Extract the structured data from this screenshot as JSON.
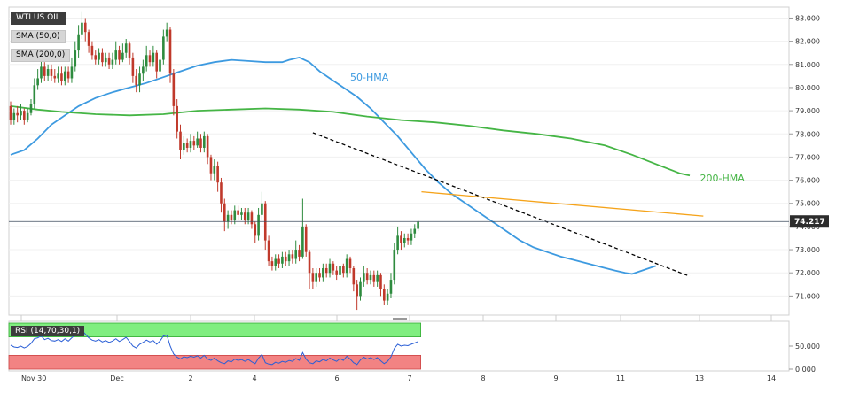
{
  "chart_data": [
    {
      "type": "candlestick",
      "title": "WTI US OIL",
      "indicators": [
        "SMA (50,0)",
        "SMA (200,0)"
      ],
      "ylim": [
        70.25,
        83.4
      ],
      "y_ticks": [
        "71.000",
        "72.000",
        "73.000",
        "74.000",
        "75.000",
        "76.000",
        "77.000",
        "78.000",
        "79.000",
        "80.000",
        "81.000",
        "82.000",
        "83.000"
      ],
      "x_ticks": [
        "Nov 30",
        "Dec",
        "2",
        "4",
        "6",
        "7",
        "8",
        "9",
        "11",
        "13",
        "14"
      ],
      "current_price": "74.217",
      "candles": [
        [
          79.2,
          78.6,
          79.4,
          78.4
        ],
        [
          78.6,
          78.9,
          79.1,
          78.4
        ],
        [
          78.9,
          78.8,
          79.2,
          78.5
        ],
        [
          78.8,
          79.0,
          79.3,
          78.6
        ],
        [
          79.0,
          78.6,
          79.1,
          78.4
        ],
        [
          78.6,
          78.9,
          79.1,
          78.5
        ],
        [
          78.9,
          79.3,
          79.5,
          78.8
        ],
        [
          79.3,
          80.1,
          80.4,
          79.1
        ],
        [
          80.1,
          80.4,
          80.8,
          79.9
        ],
        [
          80.4,
          80.9,
          81.2,
          80.2
        ],
        [
          80.9,
          80.5,
          81.1,
          80.3
        ],
        [
          80.5,
          80.8,
          81.0,
          80.3
        ],
        [
          80.8,
          80.5,
          81.0,
          80.3
        ],
        [
          80.5,
          80.4,
          80.8,
          80.2
        ],
        [
          80.4,
          80.6,
          80.9,
          80.2
        ],
        [
          80.6,
          80.3,
          80.9,
          80.1
        ],
        [
          80.3,
          80.7,
          80.9,
          80.1
        ],
        [
          80.7,
          80.4,
          80.9,
          80.2
        ],
        [
          80.4,
          80.9,
          81.3,
          80.2
        ],
        [
          80.9,
          81.6,
          82.0,
          80.7
        ],
        [
          81.6,
          82.3,
          82.7,
          81.3
        ],
        [
          82.3,
          82.8,
          83.3,
          82.1
        ],
        [
          82.8,
          82.4,
          83.0,
          82.0
        ],
        [
          82.4,
          81.8,
          82.5,
          81.5
        ],
        [
          81.8,
          81.4,
          82.0,
          81.2
        ],
        [
          81.4,
          81.2,
          81.6,
          81.0
        ],
        [
          81.2,
          81.5,
          81.7,
          81.0
        ],
        [
          81.5,
          81.1,
          81.7,
          80.9
        ],
        [
          81.1,
          81.3,
          81.5,
          80.9
        ],
        [
          81.3,
          81.0,
          81.5,
          80.8
        ],
        [
          81.0,
          81.2,
          81.5,
          80.8
        ],
        [
          81.2,
          81.6,
          82.0,
          81.0
        ],
        [
          81.6,
          81.2,
          81.8,
          81.0
        ],
        [
          81.2,
          81.5,
          81.9,
          81.1
        ],
        [
          81.5,
          81.9,
          82.1,
          81.3
        ],
        [
          81.9,
          81.3,
          82.0,
          81.0
        ],
        [
          81.3,
          80.5,
          81.5,
          80.2
        ],
        [
          80.5,
          80.1,
          80.8,
          79.8
        ],
        [
          80.1,
          80.6,
          80.9,
          79.8
        ],
        [
          80.6,
          80.9,
          81.2,
          80.3
        ],
        [
          80.9,
          81.4,
          81.8,
          80.7
        ],
        [
          81.4,
          81.1,
          81.6,
          80.9
        ],
        [
          81.1,
          81.5,
          81.8,
          80.9
        ],
        [
          81.5,
          80.7,
          81.6,
          80.4
        ],
        [
          80.7,
          81.2,
          81.4,
          80.5
        ],
        [
          81.2,
          82.2,
          82.5,
          81.0
        ],
        [
          82.2,
          82.5,
          82.8,
          82.0
        ],
        [
          82.5,
          80.6,
          82.6,
          80.2
        ],
        [
          80.6,
          79.2,
          80.8,
          78.8
        ],
        [
          79.2,
          78.1,
          79.5,
          77.8
        ],
        [
          78.1,
          77.3,
          78.4,
          76.9
        ],
        [
          77.3,
          77.6,
          77.9,
          77.1
        ],
        [
          77.6,
          77.4,
          77.8,
          77.2
        ],
        [
          77.4,
          77.7,
          78.0,
          77.2
        ],
        [
          77.7,
          77.5,
          77.9,
          77.3
        ],
        [
          77.5,
          77.8,
          78.1,
          77.4
        ],
        [
          77.8,
          77.4,
          78.0,
          77.2
        ],
        [
          77.4,
          77.9,
          78.1,
          77.2
        ],
        [
          77.9,
          77.0,
          78.0,
          76.7
        ],
        [
          77.0,
          76.3,
          77.1,
          76.0
        ],
        [
          76.3,
          76.6,
          76.9,
          76.0
        ],
        [
          76.6,
          75.9,
          76.8,
          75.5
        ],
        [
          75.9,
          75.0,
          76.1,
          74.6
        ],
        [
          75.0,
          74.2,
          75.2,
          73.8
        ],
        [
          74.2,
          74.5,
          74.7,
          73.9
        ],
        [
          74.5,
          74.3,
          74.7,
          74.1
        ],
        [
          74.3,
          74.7,
          74.9,
          74.1
        ],
        [
          74.7,
          74.5,
          74.9,
          74.3
        ],
        [
          74.5,
          74.6,
          74.8,
          74.3
        ],
        [
          74.6,
          74.3,
          74.8,
          74.1
        ],
        [
          74.3,
          74.6,
          74.8,
          74.1
        ],
        [
          74.6,
          74.1,
          74.7,
          73.9
        ],
        [
          74.1,
          73.6,
          74.2,
          73.3
        ],
        [
          73.6,
          74.5,
          74.8,
          73.4
        ],
        [
          74.5,
          75.0,
          75.5,
          74.3
        ],
        [
          75.0,
          73.4,
          75.1,
          73.0
        ],
        [
          73.4,
          72.5,
          73.6,
          72.3
        ],
        [
          72.5,
          72.3,
          72.7,
          72.1
        ],
        [
          72.3,
          72.6,
          72.8,
          72.1
        ],
        [
          72.6,
          72.4,
          72.8,
          72.2
        ],
        [
          72.4,
          72.7,
          72.9,
          72.2
        ],
        [
          72.7,
          72.5,
          72.9,
          72.3
        ],
        [
          72.5,
          72.8,
          73.0,
          72.3
        ],
        [
          72.8,
          72.6,
          73.0,
          72.4
        ],
        [
          72.6,
          73.0,
          73.4,
          72.4
        ],
        [
          73.0,
          72.7,
          73.2,
          72.5
        ],
        [
          72.7,
          74.0,
          75.2,
          72.6
        ],
        [
          74.0,
          72.9,
          74.1,
          72.7
        ],
        [
          72.9,
          72.0,
          73.0,
          71.3
        ],
        [
          72.0,
          71.6,
          72.2,
          71.3
        ],
        [
          71.6,
          72.0,
          72.2,
          71.4
        ],
        [
          72.0,
          71.8,
          72.2,
          71.6
        ],
        [
          71.8,
          72.2,
          72.4,
          71.6
        ],
        [
          72.2,
          72.0,
          72.4,
          71.8
        ],
        [
          72.0,
          72.4,
          72.6,
          71.8
        ],
        [
          72.4,
          72.1,
          72.5,
          71.9
        ],
        [
          72.1,
          71.9,
          72.3,
          71.7
        ],
        [
          71.9,
          72.3,
          72.5,
          71.7
        ],
        [
          72.3,
          72.0,
          72.4,
          71.8
        ],
        [
          72.0,
          72.6,
          72.8,
          71.8
        ],
        [
          72.6,
          72.2,
          72.7,
          72.0
        ],
        [
          72.2,
          71.5,
          72.3,
          71.2
        ],
        [
          71.5,
          71.0,
          71.7,
          70.4
        ],
        [
          71.0,
          71.6,
          71.8,
          70.8
        ],
        [
          71.6,
          72.0,
          72.3,
          71.4
        ],
        [
          72.0,
          71.7,
          72.2,
          71.5
        ],
        [
          71.7,
          71.9,
          72.1,
          71.5
        ],
        [
          71.9,
          71.6,
          72.1,
          71.4
        ],
        [
          71.6,
          71.9,
          72.1,
          71.4
        ],
        [
          71.9,
          71.3,
          72.0,
          71.0
        ],
        [
          71.3,
          70.8,
          71.5,
          70.6
        ],
        [
          70.8,
          71.1,
          71.3,
          70.6
        ],
        [
          71.1,
          71.7,
          72.0,
          70.9
        ],
        [
          71.7,
          73.0,
          73.3,
          71.5
        ],
        [
          73.0,
          73.6,
          74.0,
          72.8
        ],
        [
          73.6,
          73.3,
          73.8,
          73.0
        ],
        [
          73.3,
          73.5,
          73.7,
          73.1
        ],
        [
          73.5,
          73.4,
          73.7,
          73.2
        ],
        [
          73.4,
          73.7,
          73.9,
          73.2
        ],
        [
          73.7,
          73.9,
          74.1,
          73.5
        ],
        [
          73.9,
          74.2,
          74.3,
          73.8
        ]
      ],
      "series": [
        {
          "name": "50-HMA",
          "color": "#3d9ae0",
          "values": [
            [
              0,
              77.1
            ],
            [
              4,
              77.3
            ],
            [
              8,
              77.8
            ],
            [
              12,
              78.4
            ],
            [
              16,
              78.8
            ],
            [
              20,
              79.2
            ],
            [
              25,
              79.55
            ],
            [
              30,
              79.8
            ],
            [
              35,
              80.0
            ],
            [
              40,
              80.2
            ],
            [
              45,
              80.45
            ],
            [
              50,
              80.7
            ],
            [
              55,
              80.95
            ],
            [
              60,
              81.1
            ],
            [
              65,
              81.2
            ],
            [
              70,
              81.15
            ],
            [
              75,
              81.1
            ],
            [
              80,
              81.1
            ],
            [
              82,
              81.2
            ],
            [
              85,
              81.3
            ],
            [
              88,
              81.1
            ],
            [
              91,
              80.7
            ],
            [
              94,
              80.4
            ],
            [
              98,
              80.0
            ],
            [
              102,
              79.6
            ],
            [
              106,
              79.1
            ],
            [
              110,
              78.5
            ],
            [
              114,
              77.9
            ],
            [
              118,
              77.2
            ],
            [
              122,
              76.5
            ],
            [
              126,
              75.9
            ],
            [
              130,
              75.4
            ],
            [
              134,
              75.0
            ],
            [
              138,
              74.6
            ],
            [
              142,
              74.2
            ],
            [
              146,
              73.8
            ],
            [
              150,
              73.4
            ],
            [
              154,
              73.1
            ],
            [
              158,
              72.9
            ],
            [
              162,
              72.7
            ],
            [
              166,
              72.55
            ],
            [
              170,
              72.4
            ],
            [
              174,
              72.25
            ],
            [
              178,
              72.1
            ],
            [
              181,
              72.0
            ],
            [
              183,
              71.95
            ],
            [
              185,
              72.05
            ],
            [
              188,
              72.2
            ],
            [
              190,
              72.3
            ]
          ]
        },
        {
          "name": "200-HMA",
          "color": "#45b545",
          "values": [
            [
              0,
              79.2
            ],
            [
              8,
              79.05
            ],
            [
              15,
              78.95
            ],
            [
              25,
              78.85
            ],
            [
              35,
              78.8
            ],
            [
              45,
              78.85
            ],
            [
              55,
              79.0
            ],
            [
              65,
              79.05
            ],
            [
              75,
              79.1
            ],
            [
              85,
              79.05
            ],
            [
              95,
              78.95
            ],
            [
              105,
              78.75
            ],
            [
              115,
              78.6
            ],
            [
              125,
              78.5
            ],
            [
              135,
              78.35
            ],
            [
              145,
              78.15
            ],
            [
              155,
              78.0
            ],
            [
              165,
              77.8
            ],
            [
              175,
              77.5
            ],
            [
              183,
              77.1
            ],
            [
              190,
              76.7
            ],
            [
              197,
              76.3
            ],
            [
              200,
              76.2
            ]
          ]
        }
      ],
      "annotations": [
        {
          "text": "50-HMA",
          "color": "#3d9ae0"
        },
        {
          "text": "200-HMA",
          "color": "#45b545"
        }
      ],
      "trendlines": [
        {
          "style": "dashed",
          "color": "#000000",
          "from": [
            89,
            78.05
          ],
          "to": [
            200,
            71.85
          ]
        },
        {
          "style": "solid",
          "color": "#f5a31a",
          "from": [
            121,
            75.5
          ],
          "to": [
            204,
            74.45
          ]
        }
      ]
    },
    {
      "type": "line",
      "title": "RSI (14,70,30,1)",
      "ylim": [
        0,
        100
      ],
      "y_ticks": [
        "0.000",
        "50.000"
      ],
      "overbought": 70,
      "oversold": 30,
      "series": [
        {
          "name": "RSI",
          "values": [
            52,
            48,
            47,
            50,
            46,
            49,
            56,
            66,
            68,
            72,
            64,
            67,
            62,
            61,
            64,
            60,
            66,
            61,
            68,
            74,
            80,
            84,
            76,
            68,
            63,
            61,
            64,
            59,
            62,
            58,
            61,
            66,
            60,
            64,
            69,
            60,
            50,
            46,
            54,
            58,
            63,
            59,
            62,
            54,
            61,
            72,
            74,
            50,
            33,
            26,
            22,
            27,
            25,
            28,
            26,
            29,
            24,
            30,
            22,
            19,
            24,
            18,
            14,
            12,
            18,
            16,
            22,
            19,
            21,
            17,
            21,
            16,
            12,
            24,
            32,
            14,
            11,
            10,
            15,
            13,
            17,
            15,
            19,
            17,
            23,
            19,
            36,
            22,
            14,
            12,
            18,
            16,
            21,
            18,
            24,
            20,
            17,
            23,
            19,
            28,
            22,
            14,
            10,
            20,
            26,
            22,
            25,
            21,
            25,
            18,
            12,
            17,
            27,
            45,
            54,
            50,
            52,
            51,
            54,
            57,
            60
          ]
        }
      ]
    }
  ]
}
